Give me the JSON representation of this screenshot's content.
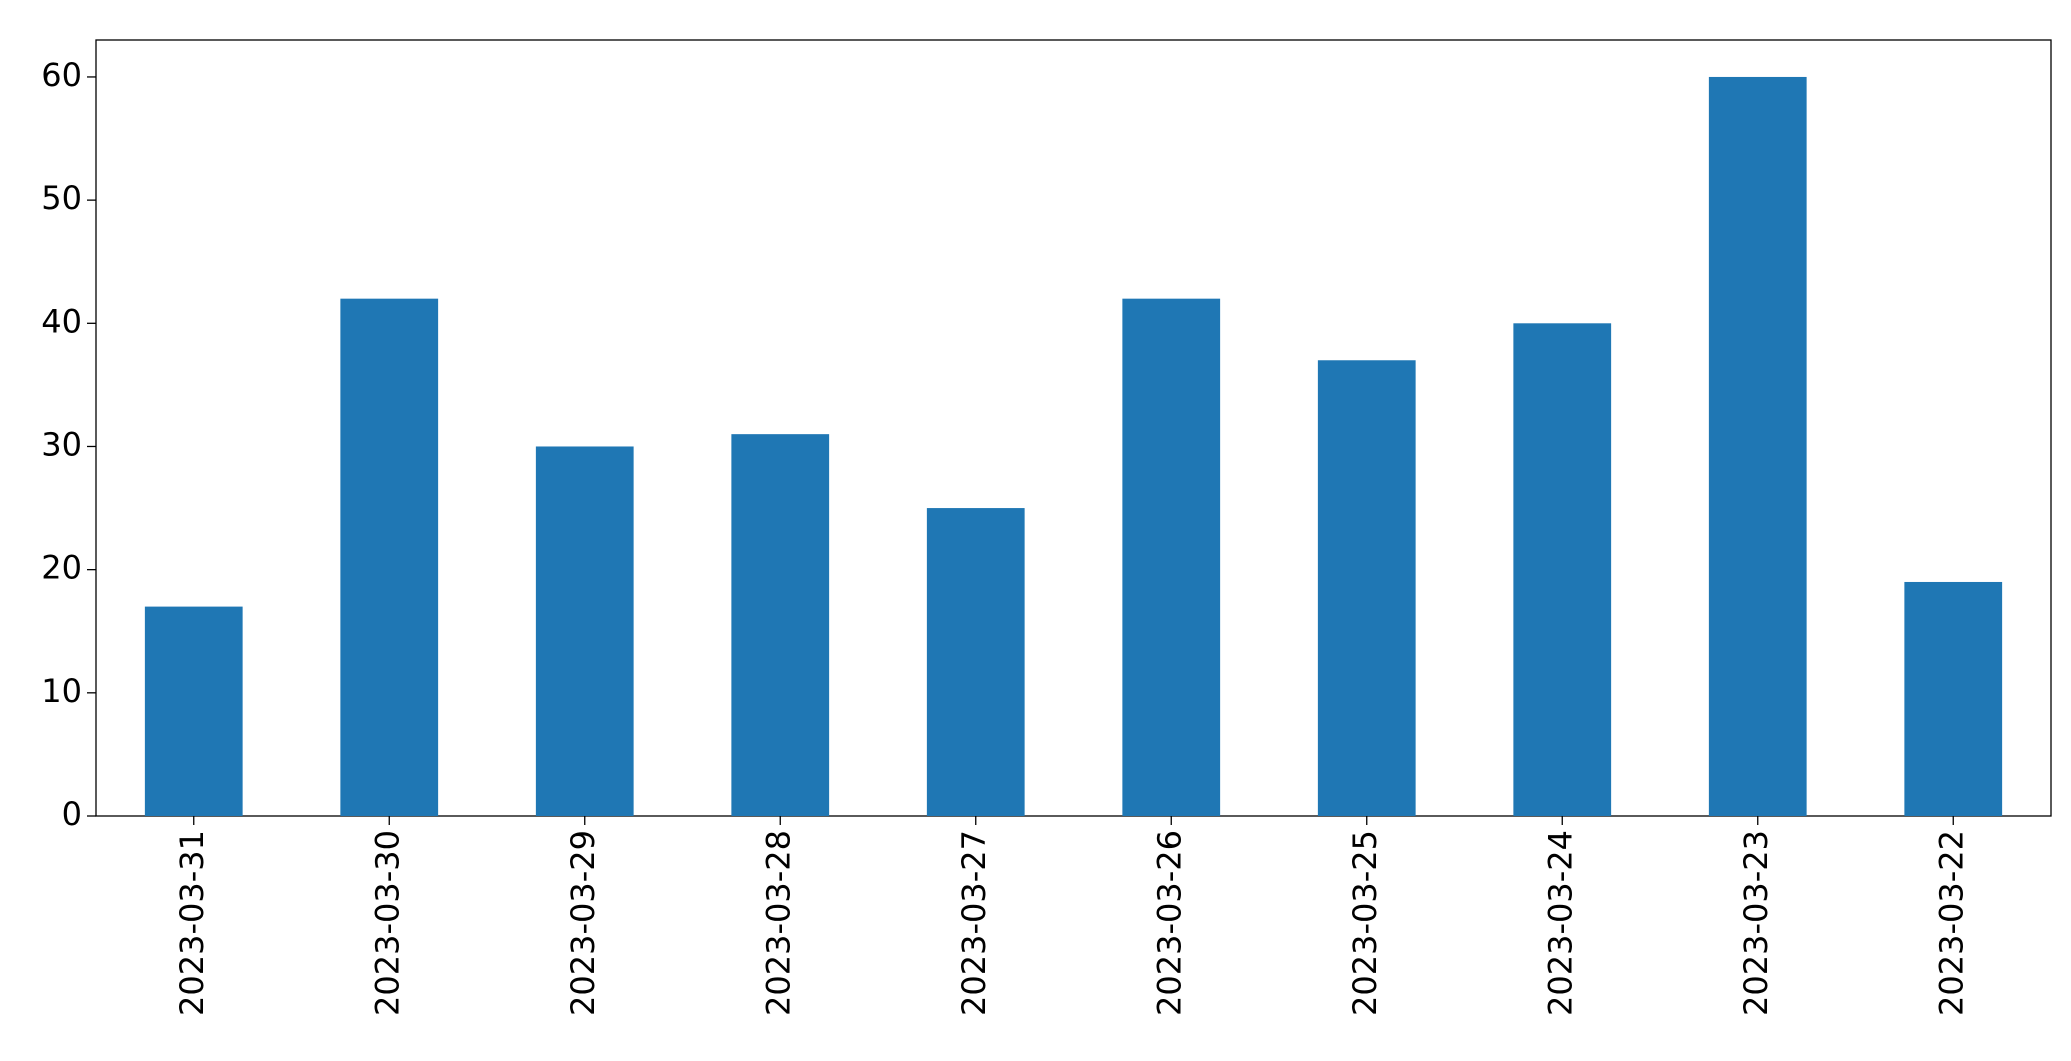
{
  "chart_data": {
    "type": "bar",
    "categories": [
      "2023-03-31",
      "2023-03-30",
      "2023-03-29",
      "2023-03-28",
      "2023-03-27",
      "2023-03-26",
      "2023-03-25",
      "2023-03-24",
      "2023-03-23",
      "2023-03-22"
    ],
    "values": [
      17,
      42,
      30,
      31,
      25,
      42,
      37,
      40,
      60,
      19
    ],
    "color": "#1f77b4",
    "ylim": [
      0,
      63
    ],
    "yticks": [
      0,
      10,
      20,
      30,
      40,
      50,
      60
    ],
    "grid": false
  }
}
